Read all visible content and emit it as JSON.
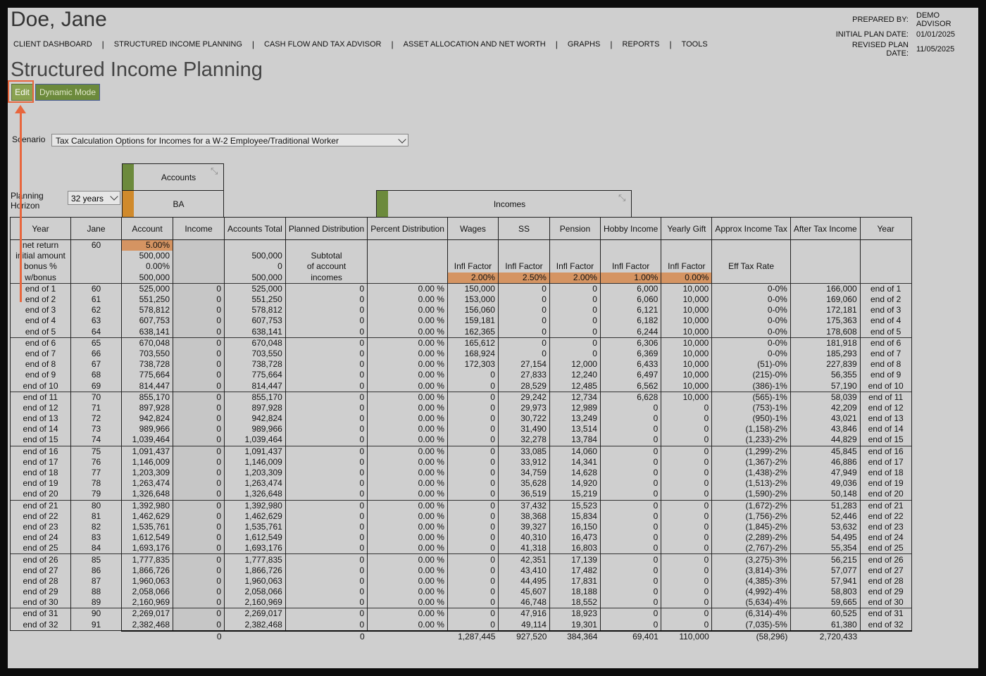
{
  "client": {
    "name": "Doe, Jane"
  },
  "nav": [
    "CLIENT DASHBOARD",
    "STRUCTURED INCOME PLANNING",
    "CASH FLOW AND TAX ADVISOR",
    "ASSET ALLOCATION AND NET WORTH",
    "GRAPHS",
    "REPORTS",
    "TOOLS"
  ],
  "meta": [
    {
      "label": "PREPARED BY:",
      "value": "DEMO ADVISOR"
    },
    {
      "label": "INITIAL PLAN DATE:",
      "value": "01/01/2025"
    },
    {
      "label": "REVISED PLAN DATE:",
      "value": "11/05/2025"
    }
  ],
  "page_title": "Structured Income Planning",
  "buttons": {
    "edit": "Edit",
    "dynamic": "Dynamic Mode"
  },
  "scenario": {
    "label": "Scenario",
    "value": "Tax Calculation Options for Incomes for a W-2 Employee/Traditional Worker"
  },
  "planning_horizon": {
    "label_line1": "Planning",
    "label_line2": "Horizon",
    "value": "32 years"
  },
  "groups": {
    "accounts": "Accounts",
    "ba": "BA",
    "incomes": "Incomes"
  },
  "colors": {
    "accent_green": "#6c8a3c",
    "orange": "#d59462",
    "callout": "#e8663d"
  },
  "columns": [
    "Year",
    "Jane",
    "Account",
    "Income",
    "Accounts Total",
    "Planned Distribution",
    "Percent Distribution",
    "Wages",
    "SS",
    "Pension",
    "Hobby Income",
    "Yearly Gift",
    "Approx Income Tax",
    "After Tax Income",
    "Year"
  ],
  "setup": {
    "labels": [
      "net return",
      "initial amount",
      "bonus %",
      "w/bonus"
    ],
    "jane": "60",
    "account": [
      "5.00",
      "500,000",
      "0.00",
      "500,000"
    ],
    "accounts_total": [
      "",
      "500,000",
      "0",
      "500,000"
    ],
    "planned": [
      "",
      "Subtotal",
      "of account",
      "incomes"
    ],
    "infl_label": "Infl Factor",
    "eff_tax_label": "Eff Tax Rate",
    "infl": {
      "wages": "2.00",
      "ss": "2.50",
      "pension": "2.00",
      "hobby": "1.00",
      "gift": "0.00"
    },
    "pct_sign": "%"
  },
  "rows": [
    [
      "end of 1",
      "60",
      "525,000",
      "0",
      "525,000",
      "0",
      "0.00",
      "150,000",
      "0",
      "0",
      "6,000",
      "10,000",
      "0-0%",
      "166,000",
      "end of 1"
    ],
    [
      "end of 2",
      "61",
      "551,250",
      "0",
      "551,250",
      "0",
      "0.00",
      "153,000",
      "0",
      "0",
      "6,060",
      "10,000",
      "0-0%",
      "169,060",
      "end of 2"
    ],
    [
      "end of 3",
      "62",
      "578,812",
      "0",
      "578,812",
      "0",
      "0.00",
      "156,060",
      "0",
      "0",
      "6,121",
      "10,000",
      "0-0%",
      "172,181",
      "end of 3"
    ],
    [
      "end of 4",
      "63",
      "607,753",
      "0",
      "607,753",
      "0",
      "0.00",
      "159,181",
      "0",
      "0",
      "6,182",
      "10,000",
      "0-0%",
      "175,363",
      "end of 4"
    ],
    [
      "end of 5",
      "64",
      "638,141",
      "0",
      "638,141",
      "0",
      "0.00",
      "162,365",
      "0",
      "0",
      "6,244",
      "10,000",
      "0-0%",
      "178,608",
      "end of 5"
    ],
    [
      "end of 6",
      "65",
      "670,048",
      "0",
      "670,048",
      "0",
      "0.00",
      "165,612",
      "0",
      "0",
      "6,306",
      "10,000",
      "0-0%",
      "181,918",
      "end of 6"
    ],
    [
      "end of 7",
      "66",
      "703,550",
      "0",
      "703,550",
      "0",
      "0.00",
      "168,924",
      "0",
      "0",
      "6,369",
      "10,000",
      "0-0%",
      "185,293",
      "end of 7"
    ],
    [
      "end of 8",
      "67",
      "738,728",
      "0",
      "738,728",
      "0",
      "0.00",
      "172,303",
      "27,154",
      "12,000",
      "6,433",
      "10,000",
      "(51)-0%",
      "227,839",
      "end of 8"
    ],
    [
      "end of 9",
      "68",
      "775,664",
      "0",
      "775,664",
      "0",
      "0.00",
      "0",
      "27,833",
      "12,240",
      "6,497",
      "10,000",
      "(215)-0%",
      "56,355",
      "end of 9"
    ],
    [
      "end of 10",
      "69",
      "814,447",
      "0",
      "814,447",
      "0",
      "0.00",
      "0",
      "28,529",
      "12,485",
      "6,562",
      "10,000",
      "(386)-1%",
      "57,190",
      "end of 10"
    ],
    [
      "end of 11",
      "70",
      "855,170",
      "0",
      "855,170",
      "0",
      "0.00",
      "0",
      "29,242",
      "12,734",
      "6,628",
      "10,000",
      "(565)-1%",
      "58,039",
      "end of 11"
    ],
    [
      "end of 12",
      "71",
      "897,928",
      "0",
      "897,928",
      "0",
      "0.00",
      "0",
      "29,973",
      "12,989",
      "0",
      "0",
      "(753)-1%",
      "42,209",
      "end of 12"
    ],
    [
      "end of 13",
      "72",
      "942,824",
      "0",
      "942,824",
      "0",
      "0.00",
      "0",
      "30,722",
      "13,249",
      "0",
      "0",
      "(950)-1%",
      "43,021",
      "end of 13"
    ],
    [
      "end of 14",
      "73",
      "989,966",
      "0",
      "989,966",
      "0",
      "0.00",
      "0",
      "31,490",
      "13,514",
      "0",
      "0",
      "(1,158)-2%",
      "43,846",
      "end of 14"
    ],
    [
      "end of 15",
      "74",
      "1,039,464",
      "0",
      "1,039,464",
      "0",
      "0.00",
      "0",
      "32,278",
      "13,784",
      "0",
      "0",
      "(1,233)-2%",
      "44,829",
      "end of 15"
    ],
    [
      "end of 16",
      "75",
      "1,091,437",
      "0",
      "1,091,437",
      "0",
      "0.00",
      "0",
      "33,085",
      "14,060",
      "0",
      "0",
      "(1,299)-2%",
      "45,845",
      "end of 16"
    ],
    [
      "end of 17",
      "76",
      "1,146,009",
      "0",
      "1,146,009",
      "0",
      "0.00",
      "0",
      "33,912",
      "14,341",
      "0",
      "0",
      "(1,367)-2%",
      "46,886",
      "end of 17"
    ],
    [
      "end of 18",
      "77",
      "1,203,309",
      "0",
      "1,203,309",
      "0",
      "0.00",
      "0",
      "34,759",
      "14,628",
      "0",
      "0",
      "(1,438)-2%",
      "47,949",
      "end of 18"
    ],
    [
      "end of 19",
      "78",
      "1,263,474",
      "0",
      "1,263,474",
      "0",
      "0.00",
      "0",
      "35,628",
      "14,920",
      "0",
      "0",
      "(1,513)-2%",
      "49,036",
      "end of 19"
    ],
    [
      "end of 20",
      "79",
      "1,326,648",
      "0",
      "1,326,648",
      "0",
      "0.00",
      "0",
      "36,519",
      "15,219",
      "0",
      "0",
      "(1,590)-2%",
      "50,148",
      "end of 20"
    ],
    [
      "end of 21",
      "80",
      "1,392,980",
      "0",
      "1,392,980",
      "0",
      "0.00",
      "0",
      "37,432",
      "15,523",
      "0",
      "0",
      "(1,672)-2%",
      "51,283",
      "end of 21"
    ],
    [
      "end of 22",
      "81",
      "1,462,629",
      "0",
      "1,462,629",
      "0",
      "0.00",
      "0",
      "38,368",
      "15,834",
      "0",
      "0",
      "(1,756)-2%",
      "52,446",
      "end of 22"
    ],
    [
      "end of 23",
      "82",
      "1,535,761",
      "0",
      "1,535,761",
      "0",
      "0.00",
      "0",
      "39,327",
      "16,150",
      "0",
      "0",
      "(1,845)-2%",
      "53,632",
      "end of 23"
    ],
    [
      "end of 24",
      "83",
      "1,612,549",
      "0",
      "1,612,549",
      "0",
      "0.00",
      "0",
      "40,310",
      "16,473",
      "0",
      "0",
      "(2,289)-2%",
      "54,495",
      "end of 24"
    ],
    [
      "end of 25",
      "84",
      "1,693,176",
      "0",
      "1,693,176",
      "0",
      "0.00",
      "0",
      "41,318",
      "16,803",
      "0",
      "0",
      "(2,767)-2%",
      "55,354",
      "end of 25"
    ],
    [
      "end of 26",
      "85",
      "1,777,835",
      "0",
      "1,777,835",
      "0",
      "0.00",
      "0",
      "42,351",
      "17,139",
      "0",
      "0",
      "(3,275)-3%",
      "56,215",
      "end of 26"
    ],
    [
      "end of 27",
      "86",
      "1,866,726",
      "0",
      "1,866,726",
      "0",
      "0.00",
      "0",
      "43,410",
      "17,482",
      "0",
      "0",
      "(3,814)-3%",
      "57,077",
      "end of 27"
    ],
    [
      "end of 28",
      "87",
      "1,960,063",
      "0",
      "1,960,063",
      "0",
      "0.00",
      "0",
      "44,495",
      "17,831",
      "0",
      "0",
      "(4,385)-3%",
      "57,941",
      "end of 28"
    ],
    [
      "end of 29",
      "88",
      "2,058,066",
      "0",
      "2,058,066",
      "0",
      "0.00",
      "0",
      "45,607",
      "18,188",
      "0",
      "0",
      "(4,992)-4%",
      "58,803",
      "end of 29"
    ],
    [
      "end of 30",
      "89",
      "2,160,969",
      "0",
      "2,160,969",
      "0",
      "0.00",
      "0",
      "46,748",
      "18,552",
      "0",
      "0",
      "(5,634)-4%",
      "59,665",
      "end of 30"
    ],
    [
      "end of 31",
      "90",
      "2,269,017",
      "0",
      "2,269,017",
      "0",
      "0.00",
      "0",
      "47,916",
      "18,923",
      "0",
      "0",
      "(6,314)-4%",
      "60,525",
      "end of 31"
    ],
    [
      "end of 32",
      "91",
      "2,382,468",
      "0",
      "2,382,468",
      "0",
      "0.00",
      "0",
      "49,114",
      "19,301",
      "0",
      "0",
      "(7,035)-5%",
      "61,380",
      "end of 32"
    ]
  ],
  "totals": {
    "income": "0",
    "planned": "0",
    "wages": "1,287,445",
    "ss": "927,520",
    "pension": "384,364",
    "hobby": "69,401",
    "gift": "110,000",
    "tax": "(58,296)",
    "after_tax": "2,720,433"
  }
}
